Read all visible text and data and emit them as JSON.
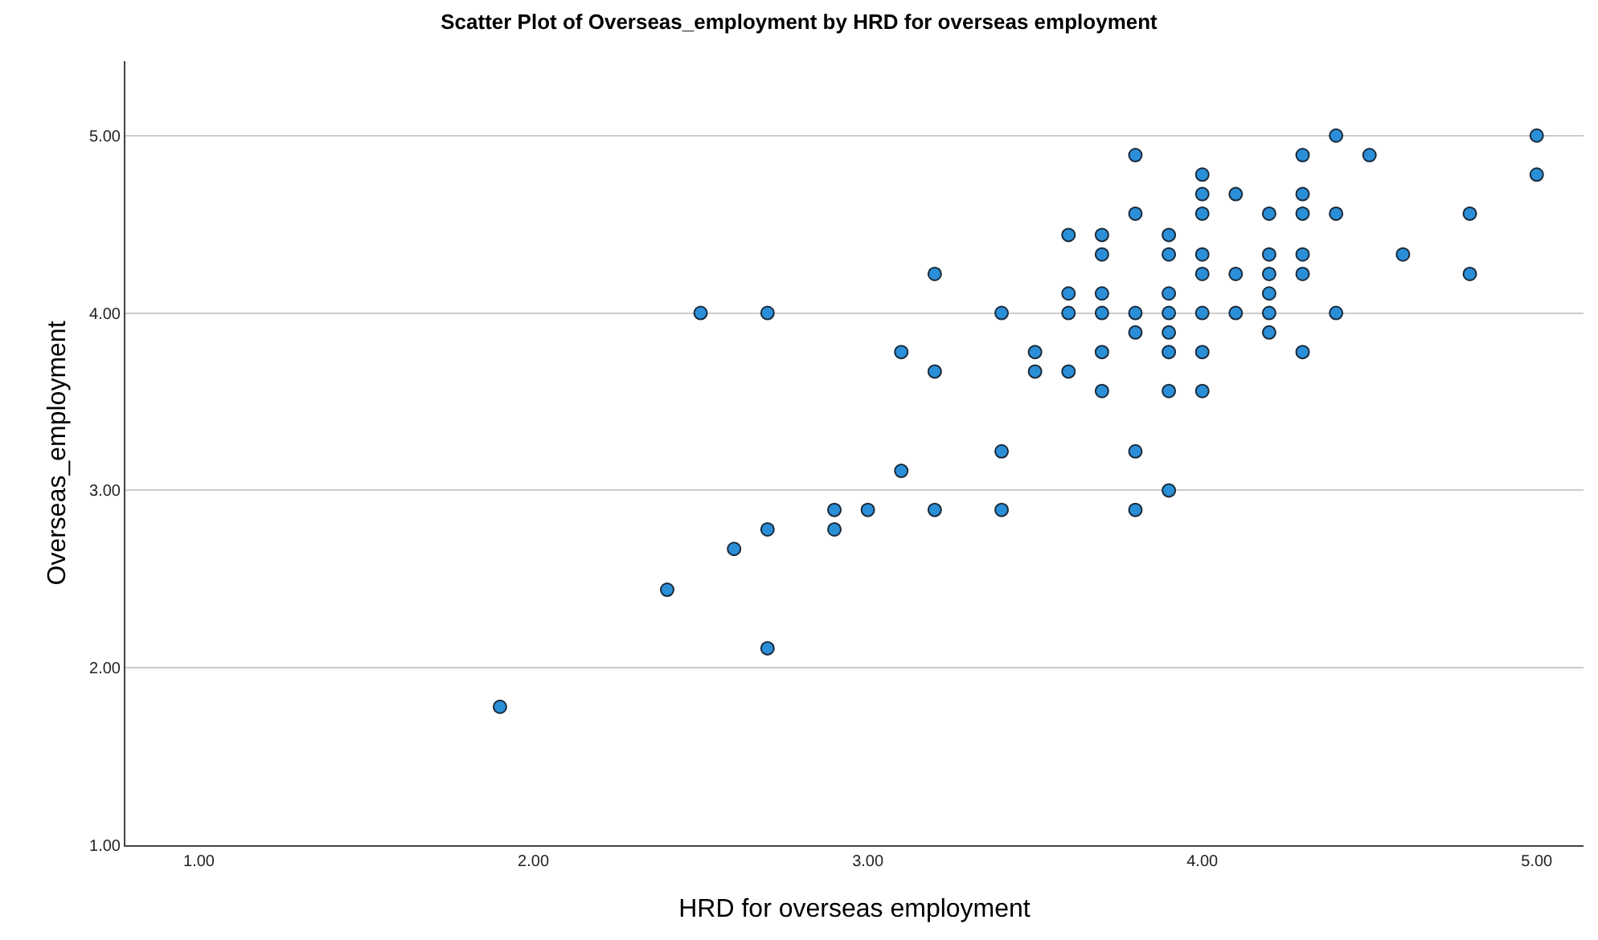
{
  "chart_data": {
    "type": "scatter",
    "title": "Scatter Plot of Overseas_employment by HRD for overseas employment",
    "xlabel": "HRD for overseas employment",
    "ylabel": "Overseas_employment",
    "x": [
      4.4,
      5.0,
      3.8,
      4.3,
      4.5,
      4.0,
      5.0,
      4.0,
      4.1,
      4.3,
      3.8,
      4.0,
      4.2,
      4.3,
      4.4,
      4.8,
      3.6,
      3.7,
      3.9,
      3.7,
      3.9,
      4.0,
      4.2,
      4.3,
      4.6,
      3.2,
      4.0,
      4.1,
      4.2,
      4.3,
      4.8,
      3.6,
      3.7,
      3.9,
      4.2,
      2.5,
      2.7,
      3.4,
      3.6,
      3.7,
      3.8,
      3.9,
      4.0,
      4.1,
      4.2,
      4.4,
      3.8,
      3.9,
      4.2,
      3.1,
      3.5,
      3.7,
      3.9,
      4.0,
      4.3,
      3.2,
      3.5,
      3.6,
      3.7,
      3.9,
      4.0,
      3.4,
      3.8,
      3.1,
      3.9,
      3.2,
      3.4,
      3.8,
      2.9,
      3.0,
      2.7,
      2.9,
      2.6,
      2.4,
      2.7,
      1.9
    ],
    "series": [
      {
        "color": "#2b8fd8",
        "values": [
          5.0,
          5.0,
          4.89,
          4.89,
          4.89,
          4.78,
          4.78,
          4.67,
          4.67,
          4.67,
          4.56,
          4.56,
          4.56,
          4.56,
          4.56,
          4.56,
          4.44,
          4.44,
          4.44,
          4.33,
          4.33,
          4.33,
          4.33,
          4.33,
          4.33,
          4.22,
          4.22,
          4.22,
          4.22,
          4.22,
          4.22,
          4.11,
          4.11,
          4.11,
          4.11,
          4.0,
          4.0,
          4.0,
          4.0,
          4.0,
          4.0,
          4.0,
          4.0,
          4.0,
          4.0,
          4.0,
          3.89,
          3.89,
          3.89,
          3.78,
          3.78,
          3.78,
          3.78,
          3.78,
          3.78,
          3.67,
          3.67,
          3.67,
          3.56,
          3.56,
          3.56,
          3.22,
          3.22,
          3.11,
          3.0,
          2.89,
          2.89,
          2.89,
          2.89,
          2.89,
          2.78,
          2.78,
          2.67,
          2.44,
          2.11,
          1.78
        ]
      }
    ],
    "xlim": [
      0.78,
      5.14
    ],
    "ylim": [
      1.0,
      5.42
    ],
    "xticks": [
      {
        "value": 1,
        "label": "1.00"
      },
      {
        "value": 2,
        "label": "2.00"
      },
      {
        "value": 3,
        "label": "3.00"
      },
      {
        "value": 4,
        "label": "4.00"
      },
      {
        "value": 5,
        "label": "5.00"
      }
    ],
    "yticks": [
      {
        "value": 1,
        "label": "1.00"
      },
      {
        "value": 2,
        "label": "2.00"
      },
      {
        "value": 3,
        "label": "3.00"
      },
      {
        "value": 4,
        "label": "4.00"
      },
      {
        "value": 5,
        "label": "5.00"
      }
    ],
    "grid": "y",
    "marker": "circle"
  }
}
